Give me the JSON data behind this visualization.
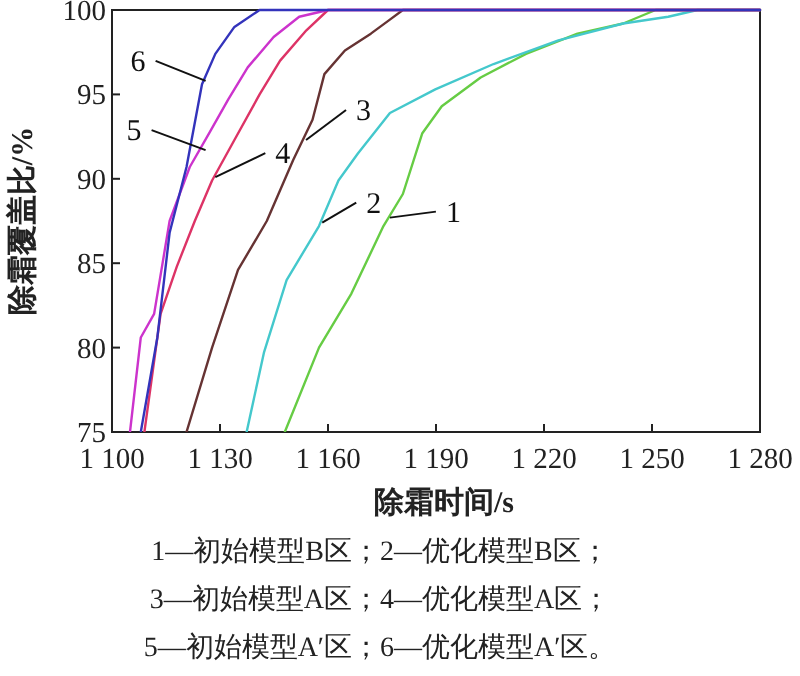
{
  "chart_data": {
    "type": "line",
    "xlabel": "除霜时间/s",
    "ylabel": "除霜覆盖比/%",
    "xlim": [
      1100,
      1280
    ],
    "ylim": [
      75,
      100
    ],
    "xticks": [
      {
        "value": 1100,
        "label": "1 100"
      },
      {
        "value": 1130,
        "label": "1 130"
      },
      {
        "value": 1160,
        "label": "1 160"
      },
      {
        "value": 1190,
        "label": "1 190"
      },
      {
        "value": 1220,
        "label": "1 220"
      },
      {
        "value": 1250,
        "label": "1 250"
      },
      {
        "value": 1280,
        "label": "1 280"
      }
    ],
    "yticks": [
      75,
      80,
      85,
      90,
      95,
      100
    ],
    "grid": false,
    "marker": "none",
    "line_style": "solid",
    "series": [
      {
        "color": "#66cc44",
        "x": [
          1148,
          1157.5,
          1166.5,
          1175.4,
          1180.8,
          1186.2,
          1191.6,
          1202.4,
          1215,
          1229.3,
          1242,
          1251,
          1280
        ],
        "values": [
          75,
          80,
          83.2,
          87.2,
          89.1,
          92.7,
          94.3,
          96,
          97.4,
          98.6,
          99.2,
          100,
          100
        ]
      },
      {
        "color": "#44c8cc",
        "x": [
          1137.4,
          1142.2,
          1148.5,
          1157.5,
          1162.9,
          1168.3,
          1177.2,
          1189.8,
          1206,
          1224,
          1242,
          1254.5,
          1262.6,
          1280
        ],
        "values": [
          75,
          79.7,
          84,
          87.2,
          89.9,
          91.5,
          93.9,
          95.3,
          96.8,
          98.2,
          99.2,
          99.6,
          100,
          100
        ]
      },
      {
        "color": "#663333",
        "x": [
          1120.7,
          1127.8,
          1135,
          1143,
          1150.3,
          1155.7,
          1159,
          1164.7,
          1171.9,
          1177,
          1180.8,
          1280
        ],
        "values": [
          75,
          80,
          84.6,
          87.5,
          91.1,
          93.5,
          96.2,
          97.6,
          98.6,
          99.4,
          100,
          100
        ]
      },
      {
        "color": "#dd3366",
        "x": [
          1109,
          1113.5,
          1118,
          1123,
          1127.8,
          1134,
          1141,
          1146.7,
          1154,
          1160,
          1280
        ],
        "values": [
          75,
          82,
          84.8,
          87.5,
          89.9,
          92.3,
          95,
          97,
          98.8,
          100,
          100
        ]
      },
      {
        "color": "#cc33cc",
        "x": [
          1105,
          1108,
          1111.7,
          1116,
          1121.6,
          1127,
          1132.3,
          1137.7,
          1144.9,
          1152,
          1160,
          1280
        ],
        "values": [
          75,
          80.6,
          82,
          87.5,
          90.7,
          92.7,
          94.7,
          96.6,
          98.4,
          99.6,
          100,
          100
        ]
      },
      {
        "color": "#3333bb",
        "x": [
          1108,
          1112.6,
          1116,
          1120.7,
          1125,
          1128.7,
          1134,
          1141,
          1280
        ],
        "values": [
          75,
          80.6,
          86.8,
          90.7,
          95.6,
          97.4,
          99,
          100,
          100
        ]
      }
    ],
    "annotations": [
      {
        "text": "1",
        "x": 1177.2,
        "y": 87.7
      },
      {
        "text": "2",
        "x": 1158.4,
        "y": 87.4
      },
      {
        "text": "3",
        "x": 1153.9,
        "y": 92.3
      },
      {
        "text": "4",
        "x": 1128.7,
        "y": 90.1
      },
      {
        "text": "5",
        "x": 1126,
        "y": 91.7
      },
      {
        "text": "6",
        "x": 1126,
        "y": 95.8
      },
      "1—初始模型B区；2—优化模型B区；",
      "3—初始模型A区；4—优化模型A区；",
      "5—初始模型A′区；6—优化模型A′区。"
    ]
  }
}
